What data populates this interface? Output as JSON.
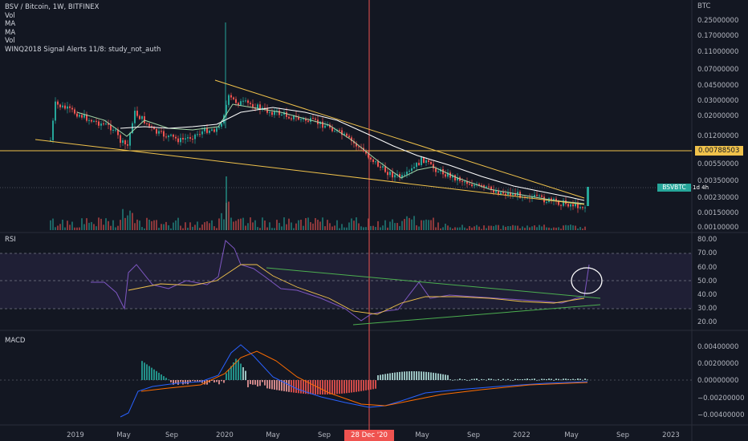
{
  "legend": {
    "symbol_line": "BSV / Bitcoin, 1W, BITFINEX",
    "indicators": [
      "Vol",
      "MA",
      "MA",
      "Vol",
      "WINQ2018 Signal Alerts 11/8: study_not_auth"
    ]
  },
  "price_axis": {
    "currency": "BTC",
    "labels": [
      "0.25000000",
      "0.17000000",
      "0.11000000",
      "0.07000000",
      "0.04500000",
      "0.03000000",
      "0.02000000",
      "0.01200000",
      "0.00550000",
      "0.00350000",
      "0.00230000",
      "0.00150000",
      "0.00100000"
    ]
  },
  "rsi": {
    "title": "RSI",
    "labels": [
      "80.00",
      "70.00",
      "60.00",
      "50.00",
      "40.00",
      "30.00",
      "20.00"
    ]
  },
  "macd": {
    "title": "MACD",
    "labels": [
      "0.00400000",
      "0.00200000",
      "0.00000000",
      "−0.00200000",
      "−0.00400000"
    ]
  },
  "time_axis": [
    "2019",
    "May",
    "Sep",
    "2020",
    "May",
    "Sep",
    "May",
    "Sep",
    "2022",
    "May",
    "Sep",
    "2023"
  ],
  "cursor_date": "28 Dec '20",
  "horizontal_level": "0.00788503",
  "last_price": {
    "symbol": "BSVBTC",
    "time_left": "1d 4h"
  },
  "colors": {
    "background": "#131722",
    "up": "#26a69a",
    "down": "#ef5350",
    "trendline": "#f0c24b",
    "ma_fast": "#a5d6a7",
    "ma_slow": "#ffffff",
    "rsi_line": "#7e57c2",
    "rsi_ma": "#f0c24b",
    "rsi_trend": "#4caf50",
    "macd_line": "#2962ff",
    "signal_line": "#ff6d00",
    "cursor": "#ef5350"
  }
}
